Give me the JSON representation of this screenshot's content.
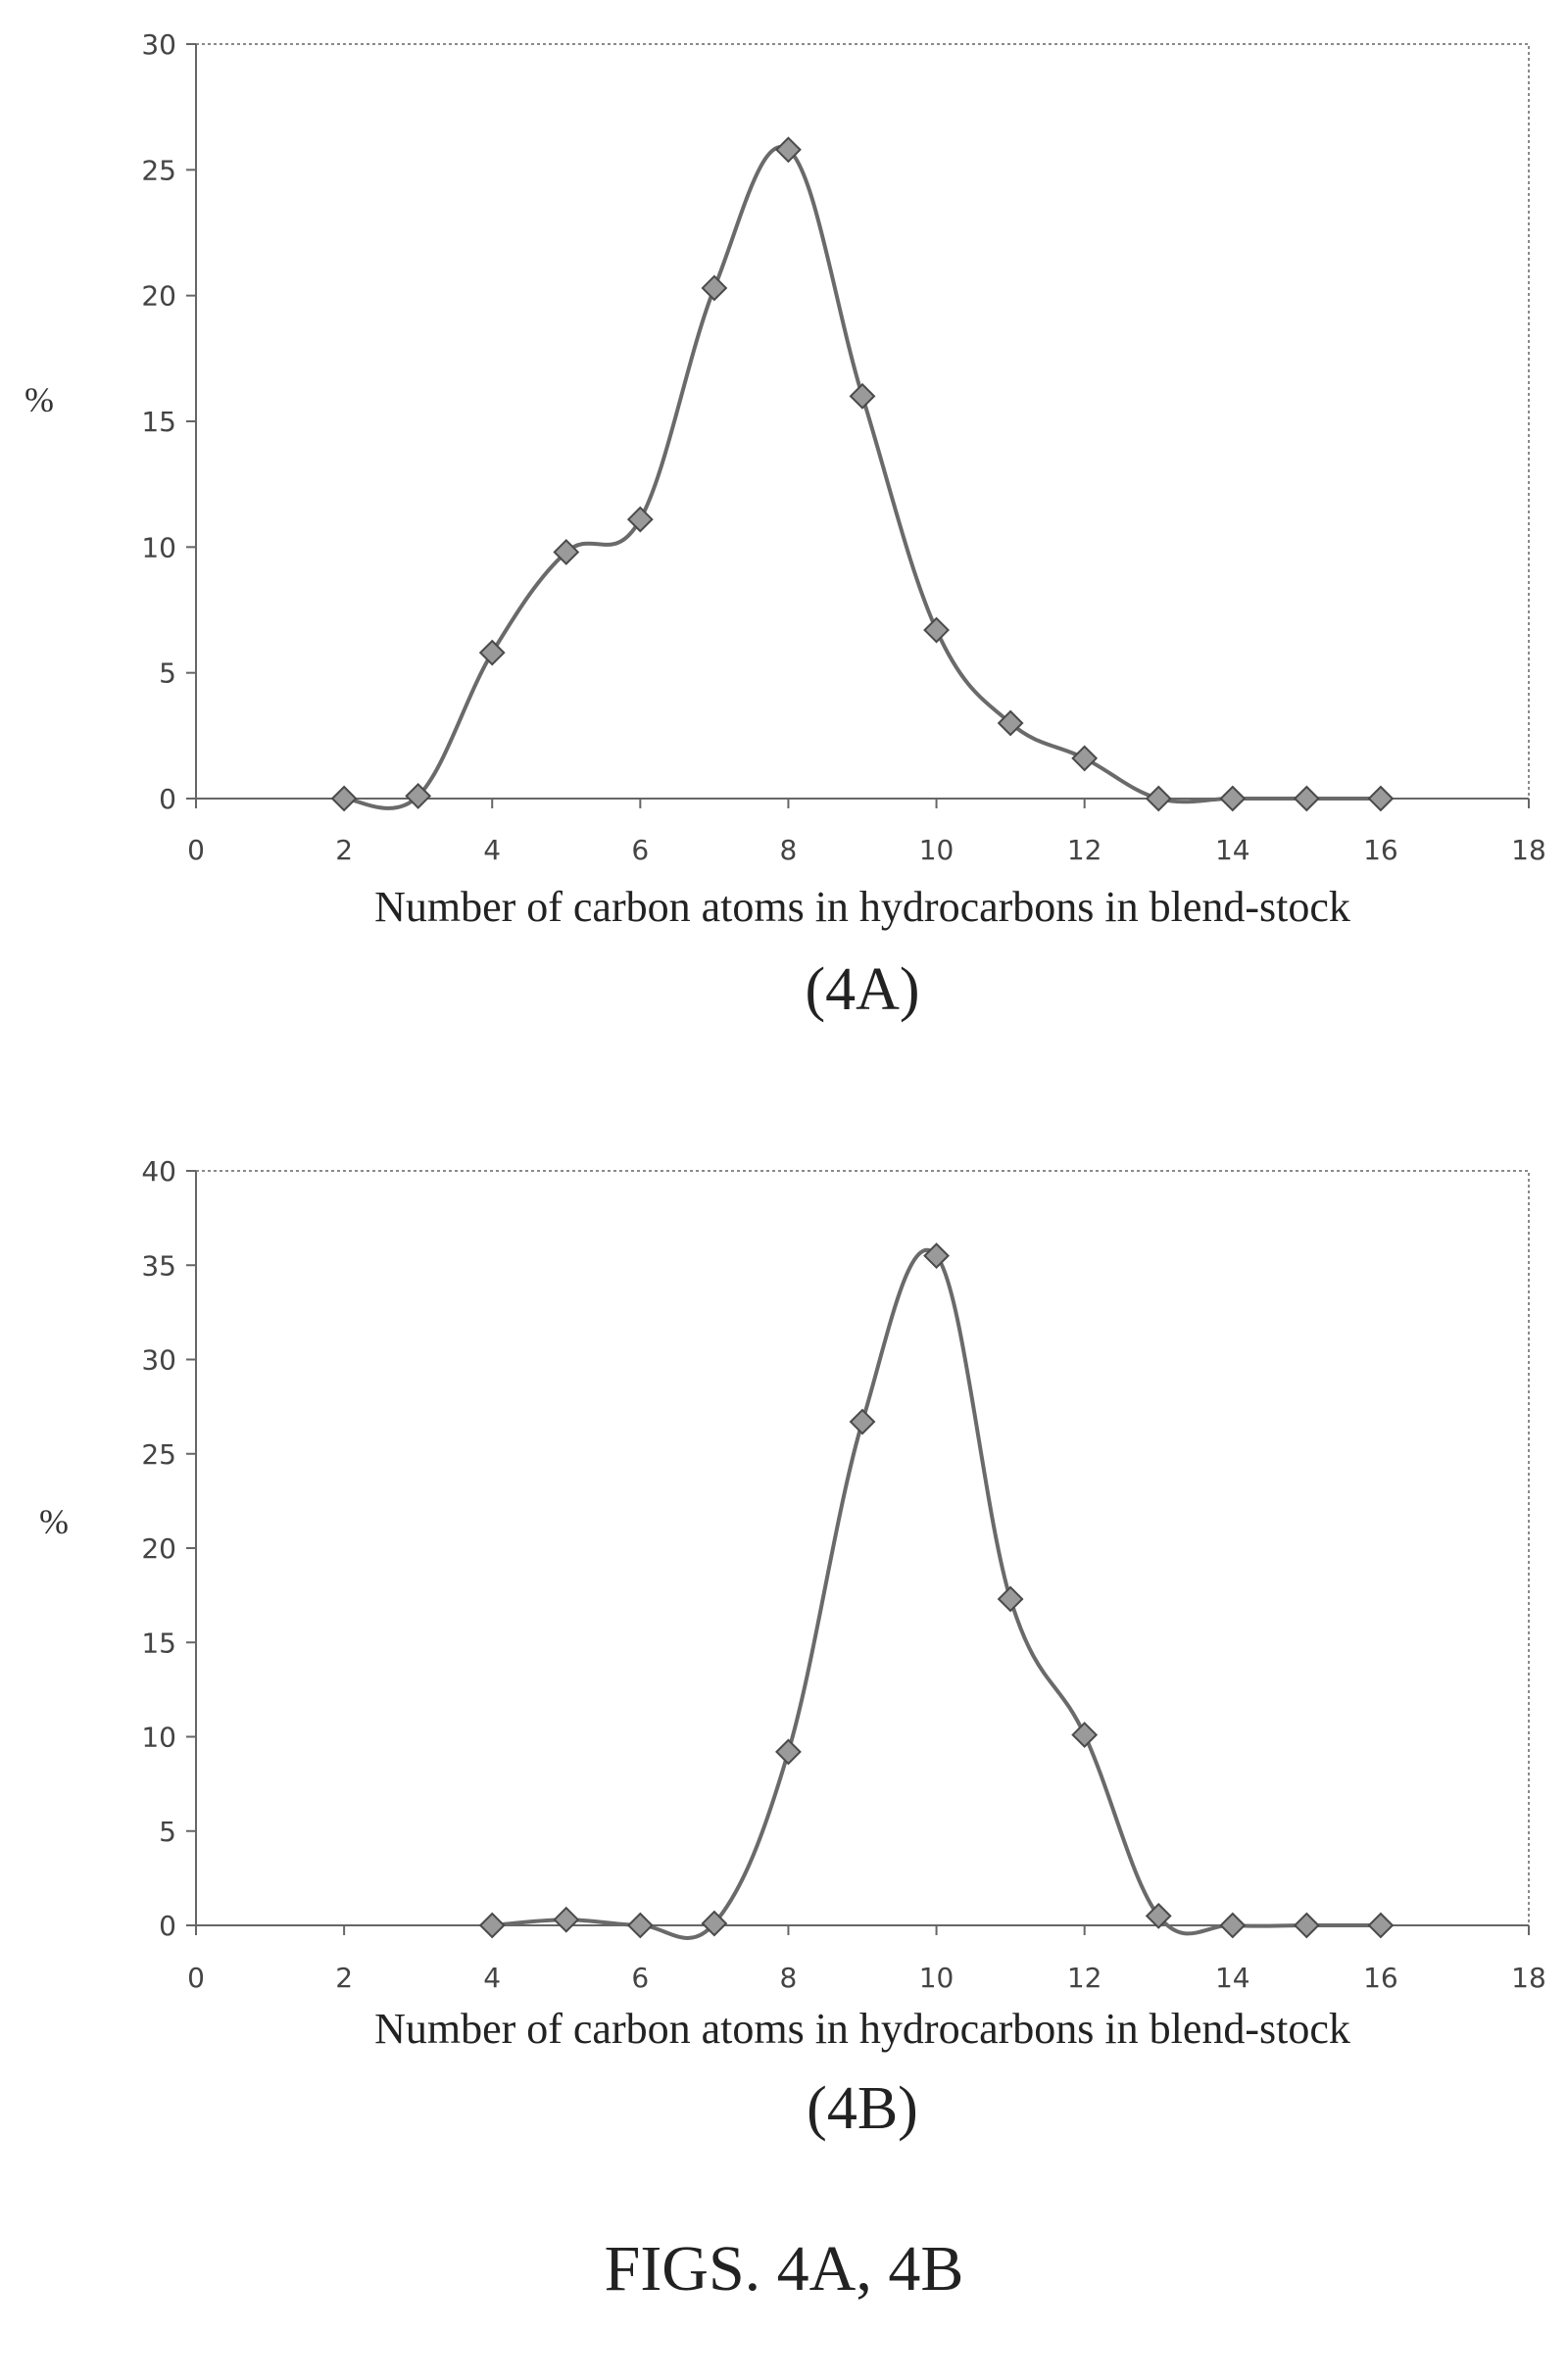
{
  "caption": "FIGS. 4A, 4B",
  "chart_data": [
    {
      "type": "line",
      "panel_label": "(4A)",
      "xlabel": "Number of carbon atoms in hydrocarbons in blend-stock",
      "ylabel": "%",
      "xlim": [
        0,
        18
      ],
      "ylim": [
        0,
        30
      ],
      "x_ticks": [
        0,
        2,
        4,
        6,
        8,
        10,
        12,
        14,
        16,
        18
      ],
      "y_ticks": [
        0,
        5,
        10,
        15,
        20,
        25,
        30
      ],
      "grid": false,
      "marker": "diamond",
      "x": [
        2,
        3,
        4,
        5,
        6,
        7,
        8,
        9,
        10,
        11,
        12,
        13,
        14,
        15,
        16
      ],
      "y": [
        0,
        0.1,
        5.8,
        9.8,
        11.1,
        20.3,
        25.8,
        16.0,
        6.7,
        3.0,
        1.6,
        0,
        0,
        0,
        0
      ]
    },
    {
      "type": "line",
      "panel_label": "(4B)",
      "xlabel": "Number of carbon atoms in hydrocarbons in blend-stock",
      "ylabel": "%",
      "xlim": [
        0,
        18
      ],
      "ylim": [
        0,
        40
      ],
      "x_ticks": [
        0,
        2,
        4,
        6,
        8,
        10,
        12,
        14,
        16,
        18
      ],
      "y_ticks": [
        0,
        5,
        10,
        15,
        20,
        25,
        30,
        35,
        40
      ],
      "grid": false,
      "marker": "diamond",
      "x": [
        4,
        5,
        6,
        7,
        8,
        9,
        10,
        11,
        12,
        13,
        14,
        15,
        16
      ],
      "y": [
        0,
        0.3,
        0,
        0.1,
        9.2,
        26.7,
        35.5,
        17.3,
        10.1,
        0.5,
        0,
        0,
        0
      ]
    }
  ]
}
